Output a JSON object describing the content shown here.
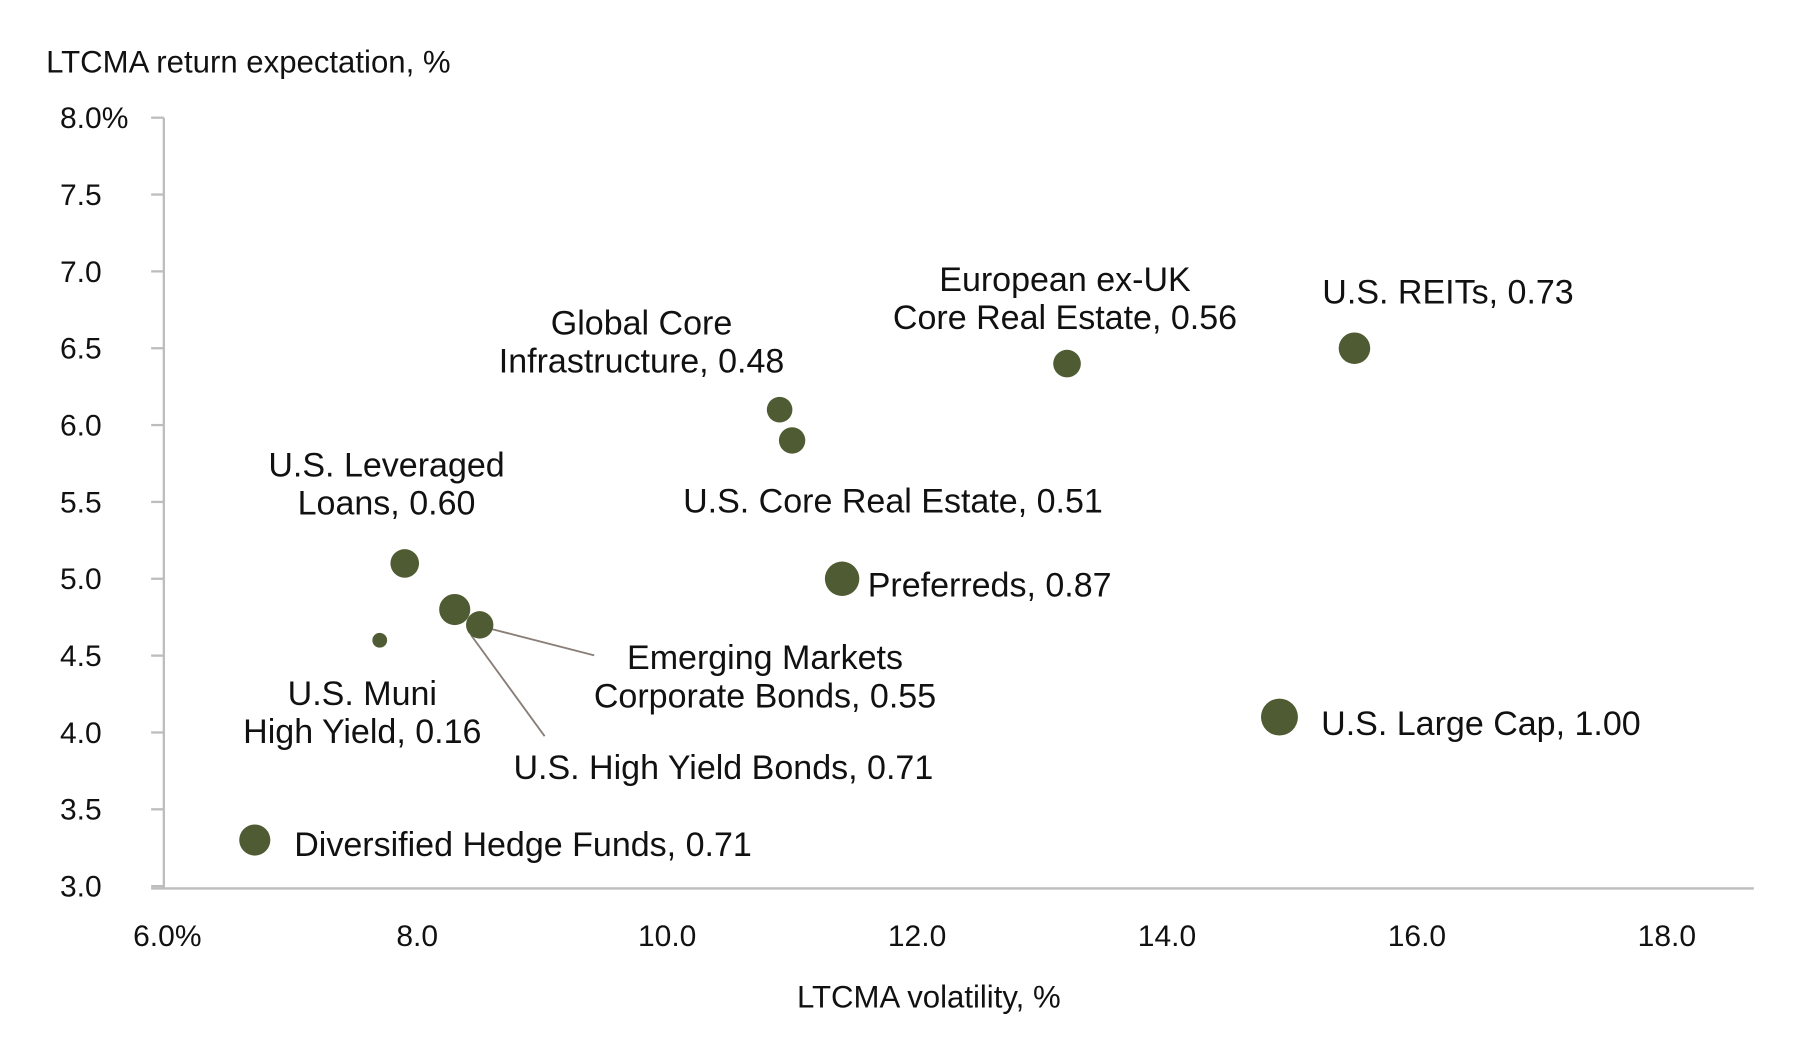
{
  "chart_data": {
    "type": "scatter",
    "title": "",
    "xlabel": "LTCMA volatility, %",
    "ylabel": "LTCMA return expectation, %",
    "xlim": [
      6.0,
      18.0
    ],
    "ylim": [
      3.0,
      8.0
    ],
    "x_ticks": [
      "6.0%",
      "8.0",
      "10.0",
      "12.0",
      "14.0",
      "16.0",
      "18.0"
    ],
    "y_ticks": [
      "8.0%",
      "7.5",
      "7.0",
      "6.5",
      "6.0",
      "5.5",
      "5.0",
      "4.5",
      "4.0",
      "3.5",
      "3.0"
    ],
    "grid": false,
    "marker_color": "#4f5b32",
    "leader_line_color": "#8a7f78",
    "bubble_size_encodes": "correlation",
    "points": [
      {
        "label": [
          "Diversified Hedge Funds, 0.71"
        ],
        "x": 6.7,
        "y": 3.3,
        "corr": 0.71
      },
      {
        "label": [
          "U.S. Muni",
          "High Yield, 0.16"
        ],
        "x": 7.7,
        "y": 4.6,
        "corr": 0.16
      },
      {
        "label": [
          "U.S. Leveraged",
          "Loans, 0.60"
        ],
        "x": 7.9,
        "y": 5.1,
        "corr": 0.6
      },
      {
        "label": [
          "U.S. High Yield Bonds, 0.71"
        ],
        "x": 8.3,
        "y": 4.8,
        "corr": 0.71
      },
      {
        "label": [
          "Emerging Markets",
          "Corporate Bonds, 0.55"
        ],
        "x": 8.5,
        "y": 4.7,
        "corr": 0.55
      },
      {
        "label": [
          "Global Core",
          "Infrastructure, 0.48"
        ],
        "x": 10.9,
        "y": 6.1,
        "corr": 0.48
      },
      {
        "label": [
          "U.S. Core Real Estate, 0.51"
        ],
        "x": 11.0,
        "y": 5.9,
        "corr": 0.51
      },
      {
        "label": [
          "Preferreds, 0.87"
        ],
        "x": 11.4,
        "y": 5.0,
        "corr": 0.87
      },
      {
        "label": [
          "European ex-UK",
          "Core Real Estate, 0.56"
        ],
        "x": 13.2,
        "y": 6.4,
        "corr": 0.56
      },
      {
        "label": [
          "U.S. REITs, 0.73"
        ],
        "x": 15.5,
        "y": 6.5,
        "corr": 0.73
      },
      {
        "label": [
          "U.S. Large Cap, 1.00"
        ],
        "x": 14.9,
        "y": 4.1,
        "corr": 1.0
      }
    ]
  }
}
